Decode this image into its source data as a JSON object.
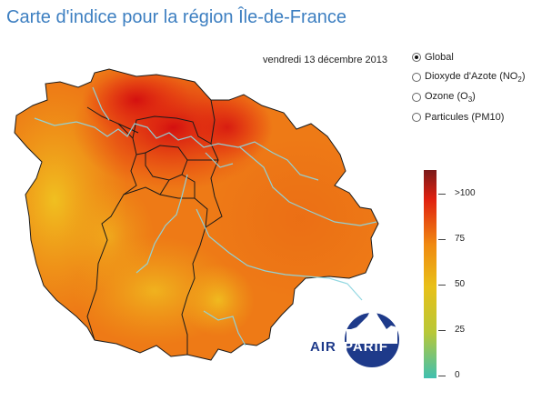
{
  "title": "Carte d'indice pour la région Île-de-France",
  "date": "vendredi 13 décembre 2013",
  "options": [
    {
      "id": "global",
      "label": "Global",
      "sub": "",
      "suffix": "",
      "selected": true
    },
    {
      "id": "no2",
      "label": "Dioxyde d'Azote (NO",
      "sub": "2",
      "suffix": ")",
      "selected": false
    },
    {
      "id": "o3",
      "label": "Ozone (O",
      "sub": "3",
      "suffix": ")",
      "selected": false
    },
    {
      "id": "pm10",
      "label": "Particules (PM10)",
      "sub": "",
      "suffix": "",
      "selected": false
    }
  ],
  "legend": {
    "ticks": [
      ">100",
      "75",
      "50",
      "25",
      "0"
    ],
    "colors": [
      "#7a1a1a",
      "#e02010",
      "#f08a10",
      "#e8c018",
      "#b8c838",
      "#40c0b0"
    ]
  },
  "logo": {
    "left": "AIR",
    "right": "PARIF",
    "color": "#1e3a8a"
  }
}
